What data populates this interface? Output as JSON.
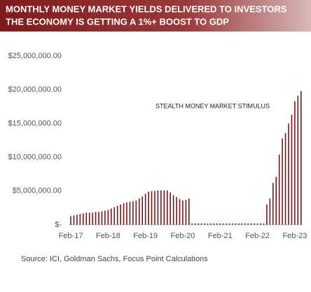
{
  "chart_data": {
    "type": "bar",
    "title": "MONTHLY MONEY MARKET YIELDS DELIVERED TO INVESTORS",
    "subtitle": "THE ECONOMY IS GETTING A 1%+ BOOST TO GDP",
    "annotation": "STEALTH MONEY MARKET STIMULUS",
    "source": "Source: ICI, Goldman Sachs, Focus Point Calculations",
    "color": "#7a1518",
    "categories": [
      "Feb-17",
      null,
      null,
      null,
      null,
      null,
      null,
      null,
      null,
      null,
      null,
      null,
      "Feb-18",
      null,
      null,
      null,
      null,
      null,
      null,
      null,
      null,
      null,
      null,
      null,
      "Feb-19",
      null,
      null,
      null,
      null,
      null,
      null,
      null,
      null,
      null,
      null,
      null,
      "Feb-20",
      null,
      null,
      null,
      null,
      null,
      null,
      null,
      null,
      null,
      null,
      null,
      "Feb-21",
      null,
      null,
      null,
      null,
      null,
      null,
      null,
      null,
      null,
      null,
      null,
      "Feb-22",
      null,
      null,
      null,
      null,
      null,
      null,
      null,
      null,
      null,
      null,
      null,
      "Feb-23",
      null,
      null
    ],
    "values": [
      1300000,
      1400000,
      1500000,
      1600000,
      1700000,
      1800000,
      1800000,
      1800000,
      1900000,
      1900000,
      2000000,
      2100000,
      2200000,
      2400000,
      2600000,
      2800000,
      3000000,
      3200000,
      3300000,
      3400000,
      3500000,
      3600000,
      3900000,
      4200000,
      4600000,
      4900000,
      5000000,
      5000000,
      5100000,
      5100000,
      5100000,
      5100000,
      4800000,
      4400000,
      4100000,
      3800000,
      3600000,
      3700000,
      3900000,
      200000,
      200000,
      200000,
      200000,
      200000,
      200000,
      200000,
      200000,
      200000,
      200000,
      200000,
      200000,
      200000,
      200000,
      200000,
      200000,
      200000,
      200000,
      200000,
      200000,
      200000,
      200000,
      200000,
      200000,
      3000000,
      3900000,
      6200000,
      7100000,
      10400000,
      12800000,
      13600000,
      15000000,
      16300000,
      18300000,
      19100000,
      19800000
    ],
    "ylim": [
      0,
      25000000
    ],
    "yticks": [
      {
        "value": 0,
        "label": "$-"
      },
      {
        "value": 5000000,
        "label": "$5,000,000.00"
      },
      {
        "value": 10000000,
        "label": "$10,000,000.00"
      },
      {
        "value": 15000000,
        "label": "$15,000,000.00"
      },
      {
        "value": 20000000,
        "label": "$20,000,000.00"
      },
      {
        "value": 25000000,
        "label": "$25,000,000.00"
      }
    ],
    "grid": false
  }
}
